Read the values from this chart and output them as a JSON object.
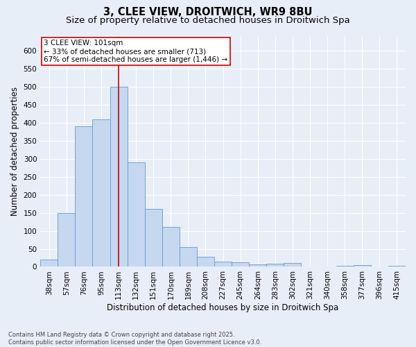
{
  "title_line1": "3, CLEE VIEW, DROITWICH, WR9 8BU",
  "title_line2": "Size of property relative to detached houses in Droitwich Spa",
  "xlabel": "Distribution of detached houses by size in Droitwich Spa",
  "ylabel": "Number of detached properties",
  "categories": [
    "38sqm",
    "57sqm",
    "76sqm",
    "95sqm",
    "113sqm",
    "132sqm",
    "151sqm",
    "170sqm",
    "189sqm",
    "208sqm",
    "227sqm",
    "245sqm",
    "264sqm",
    "283sqm",
    "302sqm",
    "321sqm",
    "340sqm",
    "358sqm",
    "377sqm",
    "396sqm",
    "415sqm"
  ],
  "values": [
    20,
    150,
    390,
    410,
    500,
    290,
    160,
    110,
    55,
    28,
    15,
    13,
    7,
    8,
    10,
    0,
    0,
    3,
    5,
    0,
    3
  ],
  "bar_color": "#c5d8f0",
  "bar_edge_color": "#6699cc",
  "vline_x_index": 4,
  "vline_color": "#cc0000",
  "annotation_text": "3 CLEE VIEW: 101sqm\n← 33% of detached houses are smaller (713)\n67% of semi-detached houses are larger (1,446) →",
  "annotation_box_color": "#ffffff",
  "annotation_box_edge_color": "#cc0000",
  "ylim": [
    0,
    640
  ],
  "yticks": [
    0,
    50,
    100,
    150,
    200,
    250,
    300,
    350,
    400,
    450,
    500,
    550,
    600
  ],
  "background_color": "#e8eef7",
  "footer_text": "Contains HM Land Registry data © Crown copyright and database right 2025.\nContains public sector information licensed under the Open Government Licence v3.0.",
  "title_fontsize": 10.5,
  "subtitle_fontsize": 9.5,
  "tick_fontsize": 7.5,
  "label_fontsize": 8.5,
  "annotation_fontsize": 7.5,
  "footer_fontsize": 6.0
}
